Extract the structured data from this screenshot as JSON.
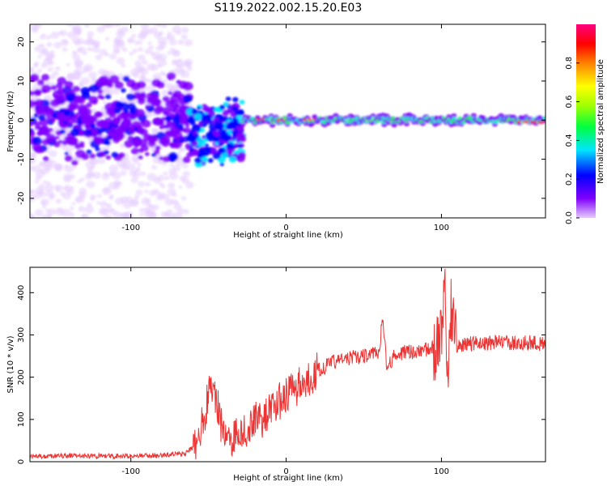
{
  "figure": {
    "title": "S119.2022.002.15.20.E03"
  },
  "chart_data": [
    {
      "type": "heatmap",
      "panel": "spectrogram",
      "xlabel": "Height of straight line (km)",
      "ylabel": "Frequency (Hz)",
      "xlim": [
        -165,
        167
      ],
      "ylim": [
        -25,
        24.5
      ],
      "xticks": [
        -100,
        0,
        100
      ],
      "yticks": [
        -20,
        -10,
        0,
        10,
        20
      ],
      "colorbar": {
        "label": "Normalized spectral amplitude",
        "range": [
          0,
          1
        ],
        "ticks": [
          "0.0",
          "0.2",
          "0.4",
          "0.6",
          "0.8"
        ],
        "colors": [
          "#e6ccff",
          "#8000ff",
          "#0000ff",
          "#00e5ff",
          "#00ff40",
          "#a0ff00",
          "#ffff00",
          "#ff8000",
          "#ff0000",
          "#ff0080"
        ]
      },
      "features": [
        {
          "x_range": [
            -165,
            -62
          ],
          "freq_center": 0,
          "freq_spread": 24,
          "amplitude": 0.1,
          "description_level": "weak"
        },
        {
          "x_range": [
            -165,
            -62
          ],
          "freq_center": 0,
          "freq_spread": 8,
          "amplitude": 0.2
        },
        {
          "x_range": [
            -62,
            -30
          ],
          "freq_center": -4,
          "freq_spread": 8,
          "amplitude": 0.3
        },
        {
          "x_range": [
            -28,
            167
          ],
          "freq_center": 0,
          "freq_spread": 1.5,
          "amplitude": 0.5
        },
        {
          "x_range": [
            -20,
            20
          ],
          "freq_center": 0,
          "freq_spread": 0.6,
          "amplitude": 0.9
        },
        {
          "x_range": [
            150,
            167
          ],
          "freq_center": -0.5,
          "freq_spread": 0.5,
          "amplitude": 0.9
        }
      ]
    },
    {
      "type": "line",
      "panel": "snr",
      "xlabel": "Height of straight line (km)",
      "ylabel": "SNR (10 * v/v)",
      "xlim": [
        -165,
        167
      ],
      "ylim": [
        0,
        460
      ],
      "xticks": [
        -100,
        0,
        100
      ],
      "yticks": [
        0,
        100,
        200,
        300,
        400
      ],
      "color": "#ee3333",
      "series": [
        {
          "x": [
            -165,
            -140,
            -110,
            -80,
            -65,
            -58,
            -52,
            -48,
            -45,
            -42,
            -38,
            -35,
            -30,
            -25,
            -20,
            -15,
            -10,
            -5,
            0,
            5,
            10,
            14,
            20,
            30,
            40,
            50,
            55,
            60,
            62,
            65,
            70,
            80,
            90,
            95,
            100,
            102,
            104,
            106,
            110,
            115,
            120,
            140,
            167
          ],
          "y": [
            12,
            14,
            13,
            15,
            20,
            40,
            120,
            190,
            150,
            90,
            60,
            50,
            80,
            70,
            110,
            100,
            120,
            140,
            160,
            170,
            185,
            195,
            215,
            235,
            245,
            250,
            255,
            260,
            340,
            220,
            255,
            260,
            265,
            270,
            280,
            420,
            150,
            360,
            270,
            275,
            280,
            282,
            280
          ]
        }
      ]
    }
  ]
}
